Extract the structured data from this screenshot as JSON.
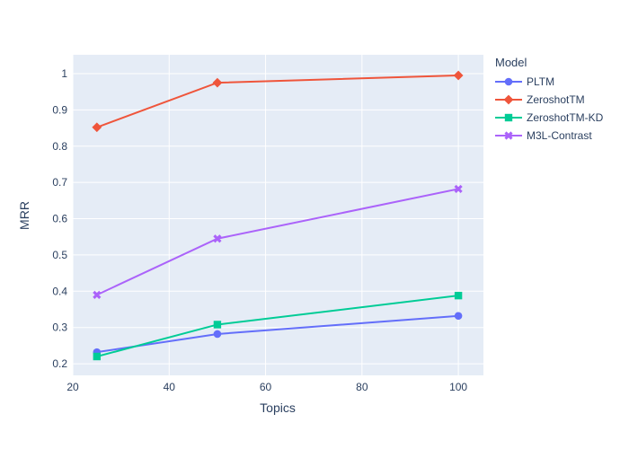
{
  "chart_data": {
    "type": "line",
    "title": "",
    "xlabel": "Topics",
    "ylabel": "MRR",
    "legend_title": "Model",
    "legend_position": "right",
    "grid": true,
    "x": [
      25,
      50,
      100
    ],
    "series": [
      {
        "name": "PLTM",
        "color": "#636EFA",
        "marker": "circle",
        "values": [
          0.232,
          0.282,
          0.332
        ]
      },
      {
        "name": "ZeroshotTM",
        "color": "#EF553B",
        "marker": "diamond",
        "values": [
          0.852,
          0.975,
          0.995
        ]
      },
      {
        "name": "ZeroshotTM-KD",
        "color": "#00CC96",
        "marker": "square",
        "values": [
          0.22,
          0.308,
          0.388
        ]
      },
      {
        "name": "M3L-Contrast",
        "color": "#AB63FA",
        "marker": "x",
        "values": [
          0.39,
          0.545,
          0.682
        ]
      }
    ],
    "xlim": [
      20,
      105.2
    ],
    "ylim": [
      0.168,
      1.052
    ],
    "x_ticks": [
      20,
      40,
      60,
      80,
      100
    ],
    "y_ticks": [
      0.2,
      0.3,
      0.4,
      0.5,
      0.6,
      0.7,
      0.8,
      0.9,
      1
    ],
    "colors": {
      "plot_background": "#E5ECF6",
      "paper_background": "#FFFFFF",
      "grid": "#FFFFFF",
      "text": "#2A3F5F"
    }
  }
}
